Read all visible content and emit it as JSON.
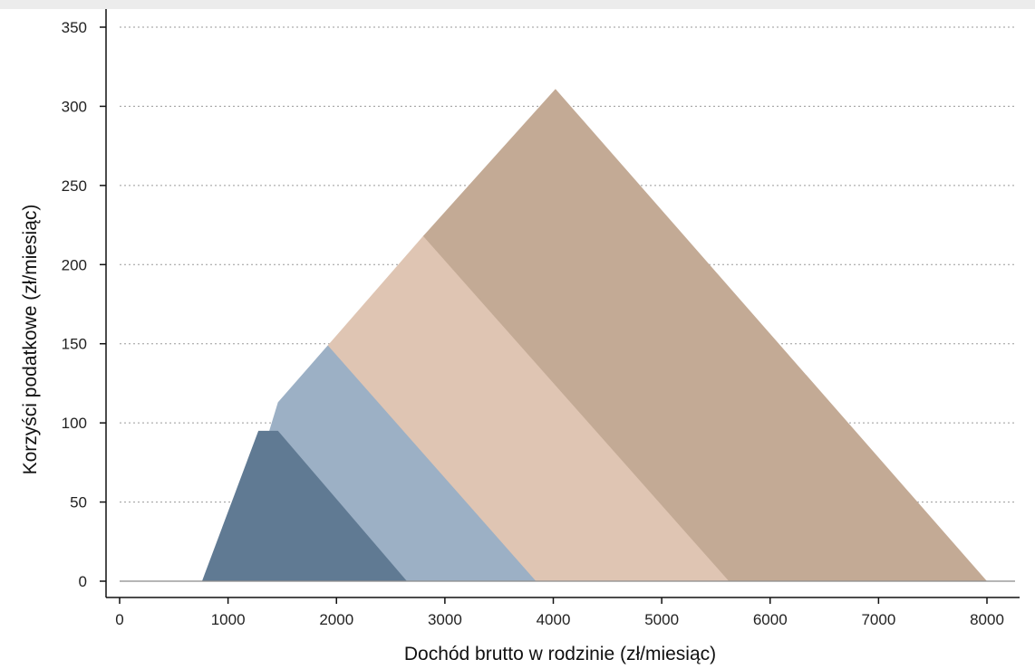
{
  "chart_data": {
    "type": "area",
    "title": "",
    "xlabel": "Dochód brutto w rodzinie (zł/miesiąc)",
    "ylabel": "Korzyści podatkowe (zł/miesiąc)",
    "xlim": [
      0,
      8300
    ],
    "ylim": [
      0,
      355
    ],
    "x_ticks": [
      0,
      1000,
      2000,
      3000,
      4000,
      5000,
      6000,
      7000,
      8000
    ],
    "y_ticks": [
      0,
      50,
      100,
      150,
      200,
      250,
      300,
      350
    ],
    "grid": "horizontal-dotted",
    "legend": "none",
    "baseline": {
      "x": [
        0,
        8300
      ],
      "y": [
        0,
        0
      ]
    },
    "series": [
      {
        "color": "#c3aa95",
        "x": [
          2800,
          4020,
          8000
        ],
        "y": [
          218,
          311,
          0
        ]
      },
      {
        "color": "#dfc5b3",
        "x": [
          1920,
          2800,
          5620
        ],
        "y": [
          149,
          218,
          0
        ]
      },
      {
        "color": "#9cb0c5",
        "x": [
          1380,
          1460,
          1920,
          3840
        ],
        "y": [
          95,
          113,
          149,
          0
        ]
      },
      {
        "color": "#607a93",
        "x": [
          760,
          1280,
          1380,
          1460,
          2650
        ],
        "y": [
          0,
          95,
          95,
          95,
          0
        ]
      }
    ]
  }
}
